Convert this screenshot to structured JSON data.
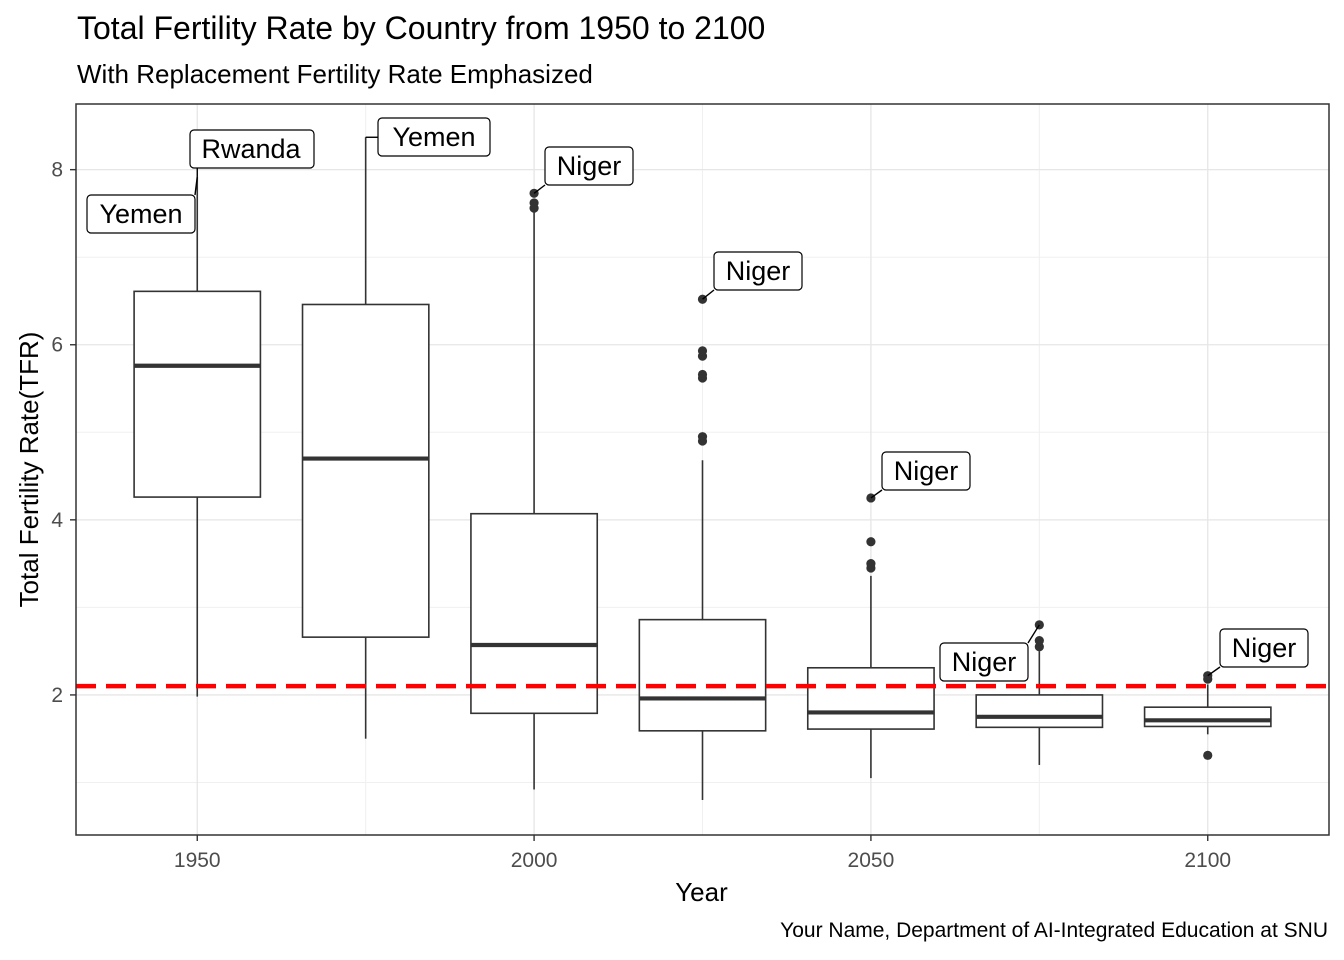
{
  "chart_data": {
    "type": "box",
    "title": "Total Fertility Rate by Country from 1950 to 2100",
    "subtitle": "With Replacement Fertility Rate Emphasized",
    "xlabel": "Year",
    "ylabel": "Total Fertility Rate(TFR)",
    "caption": "Your Name, Department of AI-Integrated Education at SNU",
    "xlim": [
      1932,
      2118
    ],
    "ylim": [
      0.4,
      8.75
    ],
    "x_ticks": [
      1950,
      2000,
      2050,
      2100
    ],
    "y_ticks": [
      2,
      4,
      6,
      8
    ],
    "grid": true,
    "replacement_rate": {
      "value": 2.1,
      "color": "#ff0000",
      "style": "dashed"
    },
    "box_color": "#333333",
    "boxes": [
      {
        "x": 1950,
        "whisker_low": 1.98,
        "q1": 4.26,
        "median": 5.76,
        "q3": 6.61,
        "whisker_high": 7.92,
        "outliers": []
      },
      {
        "x": 1975,
        "whisker_low": 1.5,
        "q1": 2.66,
        "median": 4.7,
        "q3": 6.46,
        "whisker_high": 8.37,
        "outliers": []
      },
      {
        "x": 2000,
        "whisker_low": 0.92,
        "q1": 1.79,
        "median": 2.57,
        "q3": 4.07,
        "whisker_high": 7.52,
        "outliers": [
          7.56,
          7.62,
          7.73
        ]
      },
      {
        "x": 2025,
        "whisker_low": 0.8,
        "q1": 1.59,
        "median": 1.96,
        "q3": 2.86,
        "whisker_high": 4.68,
        "outliers": [
          4.9,
          4.95,
          5.62,
          5.66,
          5.87,
          5.93,
          6.52
        ]
      },
      {
        "x": 2050,
        "whisker_low": 1.05,
        "q1": 1.61,
        "median": 1.8,
        "q3": 2.31,
        "whisker_high": 3.36,
        "outliers": [
          3.45,
          3.5,
          3.75,
          4.25
        ]
      },
      {
        "x": 2075,
        "whisker_low": 1.2,
        "q1": 1.63,
        "median": 1.75,
        "q3": 2.0,
        "whisker_high": 2.5,
        "outliers": [
          2.55,
          2.62,
          2.8
        ]
      },
      {
        "x": 2100,
        "whisker_low": 1.55,
        "q1": 1.64,
        "median": 1.71,
        "q3": 1.86,
        "whisker_high": 2.12,
        "outliers": [
          1.31,
          2.18,
          2.22
        ]
      }
    ],
    "annotations": [
      {
        "text": "Yemen",
        "x": 1950,
        "y": 7.92
      },
      {
        "text": "Rwanda",
        "x": 1950,
        "y": 7.92
      },
      {
        "text": "Yemen",
        "x": 1975,
        "y": 8.37
      },
      {
        "text": "Niger",
        "x": 2000,
        "y": 7.73
      },
      {
        "text": "Niger",
        "x": 2025,
        "y": 6.52
      },
      {
        "text": "Niger",
        "x": 2050,
        "y": 4.25
      },
      {
        "text": "Niger",
        "x": 2075,
        "y": 2.8
      },
      {
        "text": "Niger",
        "x": 2100,
        "y": 2.22
      }
    ]
  }
}
